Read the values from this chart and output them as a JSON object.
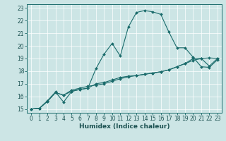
{
  "xlabel": "Humidex (Indice chaleur)",
  "bg_color": "#cce5e5",
  "line_color": "#1a6b6b",
  "grid_color": "#ffffff",
  "xlim": [
    -0.5,
    23.5
  ],
  "ylim": [
    14.7,
    23.3
  ],
  "xticks": [
    0,
    1,
    2,
    3,
    4,
    5,
    6,
    7,
    8,
    9,
    10,
    11,
    12,
    13,
    14,
    15,
    16,
    17,
    18,
    19,
    20,
    21,
    22,
    23
  ],
  "yticks": [
    15,
    16,
    17,
    18,
    19,
    20,
    21,
    22,
    23
  ],
  "line1_x": [
    0,
    1,
    2,
    3,
    4,
    5,
    6,
    7,
    8,
    9,
    10,
    11,
    12,
    13,
    14,
    15,
    16,
    17,
    18,
    19,
    20,
    21,
    22,
    23
  ],
  "line1_y": [
    15.0,
    15.05,
    15.6,
    16.3,
    16.1,
    16.5,
    16.65,
    16.8,
    16.9,
    17.0,
    17.2,
    17.4,
    17.55,
    17.65,
    17.75,
    17.85,
    17.95,
    18.1,
    18.35,
    18.6,
    18.85,
    19.0,
    19.05,
    19.0
  ],
  "line2_x": [
    0,
    1,
    2,
    3,
    4,
    5,
    6,
    7,
    8,
    9,
    10,
    11,
    12,
    13,
    14,
    15,
    16,
    17,
    18,
    19,
    20,
    21,
    22,
    23
  ],
  "line2_y": [
    15.0,
    15.05,
    15.65,
    16.35,
    15.55,
    16.4,
    16.55,
    16.65,
    18.2,
    19.35,
    20.2,
    19.2,
    21.5,
    22.65,
    22.8,
    22.7,
    22.5,
    21.1,
    19.85,
    19.85,
    19.1,
    18.35,
    18.3,
    18.9
  ],
  "line3_x": [
    0,
    1,
    2,
    3,
    4,
    5,
    6,
    7,
    8,
    9,
    10,
    11,
    12,
    13,
    14,
    15,
    16,
    17,
    18,
    19,
    20,
    21,
    22,
    23
  ],
  "line3_y": [
    15.0,
    15.05,
    15.6,
    16.3,
    16.1,
    16.4,
    16.55,
    16.65,
    17.0,
    17.1,
    17.3,
    17.5,
    17.6,
    17.65,
    17.75,
    17.85,
    17.95,
    18.1,
    18.35,
    18.6,
    19.0,
    19.0,
    18.4,
    19.0
  ],
  "tick_fontsize": 5.5,
  "xlabel_fontsize": 6.5,
  "tick_color": "#1a5050",
  "spine_color": "#1a6b6b"
}
